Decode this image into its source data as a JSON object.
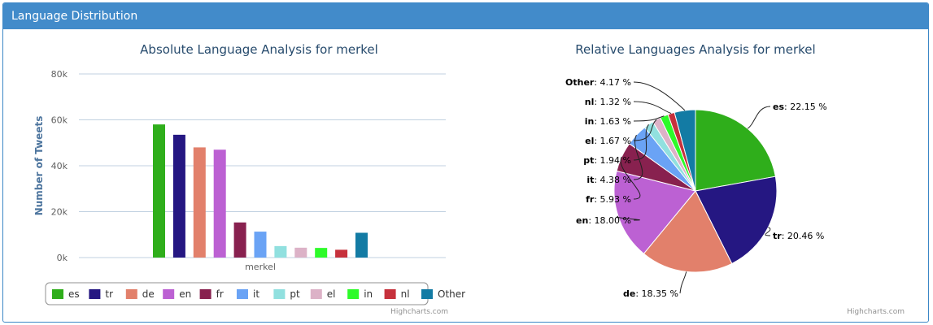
{
  "panel": {
    "title": "Language Distribution"
  },
  "credits": "Highcharts.com",
  "colors": {
    "es": "#2fae1b",
    "tr": "#251782",
    "de": "#e2806b",
    "en": "#bc61d3",
    "fr": "#88214f",
    "it": "#6aa3f5",
    "pt": "#91e0df",
    "el": "#dcb2c7",
    "in": "#2dfb29",
    "nl": "#c6313c",
    "Other": "#137ba4",
    "header": "#428bca",
    "title": "#274b6d",
    "grid": "#c0d0e0"
  },
  "chart_data": [
    {
      "type": "bar",
      "title": "Absolute Language Analysis for merkel",
      "xlabel": "",
      "ylabel": "Number of Tweets",
      "categories": [
        "merkel"
      ],
      "ylim": [
        0,
        80000
      ],
      "yticks": [
        "0k",
        "20k",
        "40k",
        "60k",
        "80k"
      ],
      "grid": true,
      "legend_position": "bottom",
      "series": [
        {
          "name": "es",
          "values": [
            58000
          ]
        },
        {
          "name": "tr",
          "values": [
            53500
          ]
        },
        {
          "name": "de",
          "values": [
            48000
          ]
        },
        {
          "name": "en",
          "values": [
            47000
          ]
        },
        {
          "name": "fr",
          "values": [
            15300
          ]
        },
        {
          "name": "it",
          "values": [
            11300
          ]
        },
        {
          "name": "pt",
          "values": [
            5000
          ]
        },
        {
          "name": "el",
          "values": [
            4300
          ]
        },
        {
          "name": "in",
          "values": [
            4200
          ]
        },
        {
          "name": "nl",
          "values": [
            3400
          ]
        },
        {
          "name": "Other",
          "values": [
            10800
          ]
        }
      ]
    },
    {
      "type": "pie",
      "title": "Relative Languages Analysis for merkel",
      "legend_position": "none",
      "slices": [
        {
          "name": "es",
          "value": 22.15,
          "label": "22.15 %"
        },
        {
          "name": "tr",
          "value": 20.46,
          "label": "20.46 %"
        },
        {
          "name": "de",
          "value": 18.35,
          "label": "18.35 %"
        },
        {
          "name": "en",
          "value": 18.0,
          "label": "18.00 %"
        },
        {
          "name": "fr",
          "value": 5.93,
          "label": "5.93 %"
        },
        {
          "name": "it",
          "value": 4.38,
          "label": "4.38 %"
        },
        {
          "name": "pt",
          "value": 1.94,
          "label": "1.94 %"
        },
        {
          "name": "el",
          "value": 1.67,
          "label": "1.67 %"
        },
        {
          "name": "in",
          "value": 1.63,
          "label": "1.63 %"
        },
        {
          "name": "nl",
          "value": 1.32,
          "label": "1.32 %"
        },
        {
          "name": "Other",
          "value": 4.17,
          "label": "4.17 %"
        }
      ]
    }
  ]
}
